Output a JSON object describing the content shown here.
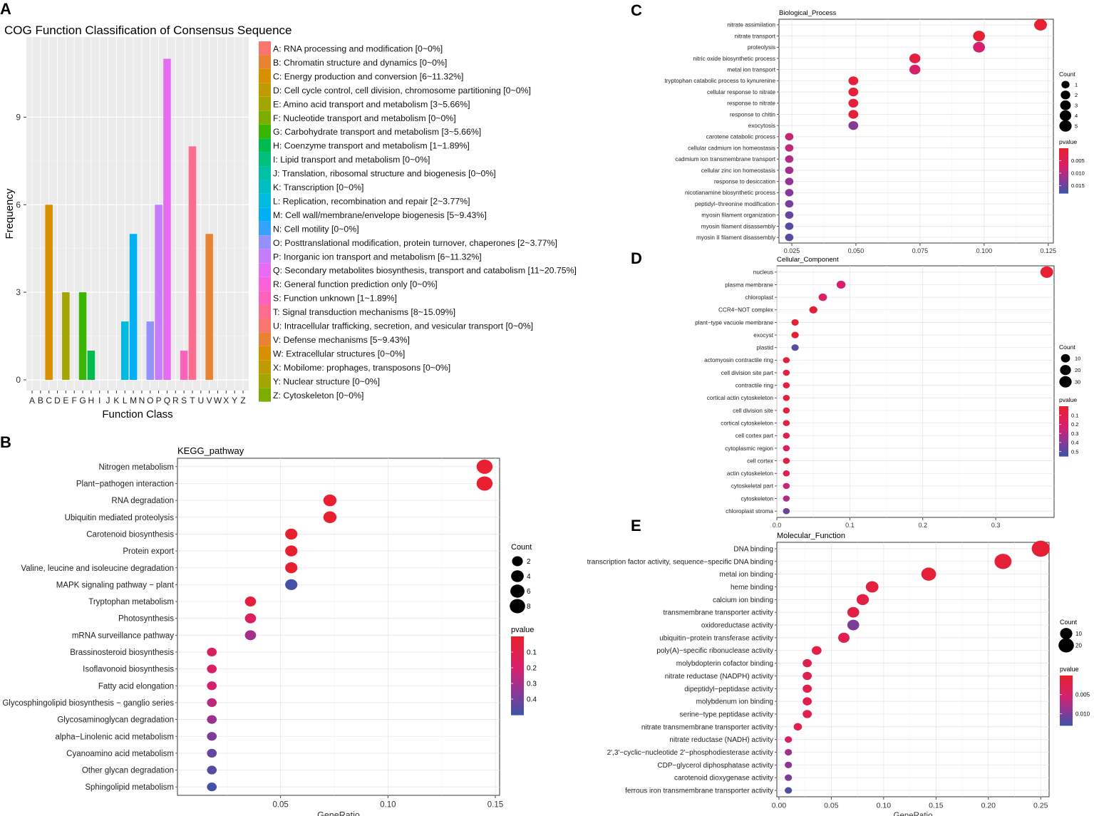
{
  "chart_data": [
    {
      "id": "A",
      "panel_letter": "A",
      "type": "bar",
      "title": "COG Function Classification of Consensus Sequence",
      "xlabel": "Function Class",
      "ylabel": "Frequency",
      "ylim": [
        0,
        11.5
      ],
      "yticks": [
        0,
        3,
        6,
        9
      ],
      "categories": [
        "A",
        "B",
        "C",
        "D",
        "E",
        "F",
        "G",
        "H",
        "I",
        "J",
        "K",
        "L",
        "M",
        "N",
        "O",
        "P",
        "Q",
        "R",
        "S",
        "T",
        "U",
        "V",
        "W",
        "X",
        "Y",
        "Z"
      ],
      "values": [
        0,
        0,
        6,
        0,
        3,
        0,
        3,
        1,
        0,
        0,
        0,
        2,
        5,
        0,
        2,
        6,
        11,
        0,
        1,
        8,
        0,
        5,
        0,
        0,
        0,
        0
      ],
      "colors": [
        "#F8766D",
        "#EA8331",
        "#D89000",
        "#C09B00",
        "#A3A500",
        "#7CAE00",
        "#39B600",
        "#00BB4E",
        "#00BF7D",
        "#00C1A3",
        "#00BFC4",
        "#00BAE0",
        "#00B0F6",
        "#35A2FF",
        "#9590FF",
        "#C77CFF",
        "#E76BF3",
        "#FA62DB",
        "#FF62BC",
        "#FF6C90",
        "#F8766D",
        "#EA8331",
        "#D89000",
        "#C09B00",
        "#A3A500",
        "#7CAE00"
      ],
      "legend": [
        "A: RNA processing and modification [0~0%]",
        "B: Chromatin structure and dynamics [0~0%]",
        "C: Energy production and conversion [6~11.32%]",
        "D: Cell cycle control, cell division, chromosome partitioning [0~0%]",
        "E: Amino acid transport and metabolism [3~5.66%]",
        "F: Nucleotide transport and metabolism [0~0%]",
        "G: Carbohydrate transport and metabolism [3~5.66%]",
        "H: Coenzyme transport and metabolism [1~1.89%]",
        "I: Lipid transport and metabolism [0~0%]",
        "J: Translation, ribosomal structure and biogenesis [0~0%]",
        "K: Transcription [0~0%]",
        "L: Replication, recombination and repair [2~3.77%]",
        "M: Cell wall/membrane/envelope biogenesis [5~9.43%]",
        "N: Cell motility [0~0%]",
        "O: Posttranslational modification, protein turnover, chaperones [2~3.77%]",
        "P: Inorganic ion transport and metabolism [6~11.32%]",
        "Q: Secondary metabolites biosynthesis, transport and catabolism [11~20.75%]",
        "R: General function prediction only [0~0%]",
        "S: Function unknown [1~1.89%]",
        "T: Signal transduction mechanisms [8~15.09%]",
        "U: Intracellular trafficking, secretion, and vesicular transport [0~0%]",
        "V: Defense mechanisms [5~9.43%]",
        "W: Extracellular structures [0~0%]",
        "X: Mobilome: prophages, transposons [0~0%]",
        "Y: Nuclear structure [0~0%]",
        "Z: Cytoskeleton [0~0%]"
      ]
    },
    {
      "id": "B",
      "panel_letter": "B",
      "type": "scatter",
      "title": "KEGG_pathway",
      "xlabel": "GeneRatio",
      "xlim": [
        0.002,
        0.152
      ],
      "xticks": [
        0.05,
        0.1,
        0.15
      ],
      "xtick_labels": [
        "0.05",
        "0.10",
        "0.15"
      ],
      "terms": [
        "Nitrogen metabolism",
        "Plant−pathogen interaction",
        "RNA degradation",
        "Ubiquitin mediated proteolysis",
        "Carotenoid biosynthesis",
        "Protein export",
        "Valine, leucine and isoleucine degradation",
        "MAPK signaling pathway − plant",
        "Tryptophan metabolism",
        "Photosynthesis",
        "mRNA surveillance pathway",
        "Brassinosteroid biosynthesis",
        "Isoflavonoid biosynthesis",
        "Fatty acid elongation",
        "Glycosphingolipid biosynthesis − ganglio series",
        "Glycosaminoglycan degradation",
        "alpha−Linolenic acid metabolism",
        "Cyanoamino acid metabolism",
        "Other glycan degradation",
        "Sphingolipid metabolism"
      ],
      "x": [
        0.145,
        0.145,
        0.073,
        0.073,
        0.055,
        0.055,
        0.055,
        0.055,
        0.036,
        0.036,
        0.036,
        0.018,
        0.018,
        0.018,
        0.018,
        0.018,
        0.018,
        0.018,
        0.018,
        0.018
      ],
      "count": [
        8,
        8,
        4,
        4,
        3,
        3,
        3,
        3,
        2,
        2,
        2,
        1,
        1,
        1,
        1,
        1,
        1,
        1,
        1,
        1
      ],
      "pvalue": [
        0.002,
        0.002,
        0.004,
        0.004,
        0.006,
        0.006,
        0.006,
        0.48,
        0.05,
        0.15,
        0.3,
        0.15,
        0.17,
        0.2,
        0.25,
        0.32,
        0.38,
        0.42,
        0.45,
        0.48
      ],
      "size_legend_title": "Count",
      "size_legend": [
        2,
        4,
        6,
        8
      ],
      "color_legend_title": "pvalue",
      "color_range": [
        0,
        0.5
      ],
      "color_ticks": [
        0.1,
        0.2,
        0.3,
        0.4
      ],
      "color_tick_labels": [
        "0.1",
        "0.2",
        "0.3",
        "0.4"
      ]
    },
    {
      "id": "C",
      "panel_letter": "C",
      "type": "scatter",
      "title": "Biological_Process",
      "xlabel": "",
      "xlim": [
        0.02,
        0.127
      ],
      "xticks": [
        0.025,
        0.05,
        0.075,
        0.1,
        0.125
      ],
      "xtick_labels": [
        "0.025",
        "0.050",
        "0.075",
        "0.100",
        "0.125"
      ],
      "terms": [
        "nitrate assimilation",
        "nitrate transport",
        "proteolysis",
        "nitric oxide biosynthetic process",
        "metal ion transport",
        "tryptophan catabolic process to kynurenine",
        "cellular response to nitrate",
        "response to nitrate",
        "response to chitin",
        "exocytosis",
        "carotene catabolic process",
        "cellular cadmium ion homeostasis",
        "cadmium ion transmembrane transport",
        "cellular zinc ion homeostasis",
        "response to desiccation",
        "nicotianamine biosynthetic process",
        "peptidyl−threonine modification",
        "myosin filament organization",
        "myosin filament disassembly",
        "myosin II filament disassembly"
      ],
      "x": [
        0.122,
        0.098,
        0.098,
        0.073,
        0.073,
        0.049,
        0.049,
        0.049,
        0.049,
        0.049,
        0.024,
        0.024,
        0.024,
        0.024,
        0.024,
        0.024,
        0.024,
        0.024,
        0.024,
        0.024
      ],
      "count": [
        5,
        4,
        4,
        3,
        3,
        2,
        2,
        2,
        2,
        2,
        1,
        1,
        1,
        1,
        1,
        1,
        1,
        1,
        1,
        1
      ],
      "pvalue": [
        0.0005,
        0.001,
        0.007,
        0.002,
        0.007,
        0.0015,
        0.0015,
        0.0015,
        0.0015,
        0.013,
        0.008,
        0.009,
        0.01,
        0.011,
        0.012,
        0.013,
        0.014,
        0.015,
        0.016,
        0.016
      ],
      "size_legend_title": "Count",
      "size_legend": [
        1,
        2,
        3,
        4,
        5
      ],
      "color_legend_title": "pvalue",
      "color_range": [
        0,
        0.018
      ],
      "color_ticks": [
        0.005,
        0.01,
        0.015
      ],
      "color_tick_labels": [
        "0.005",
        "0.010",
        "0.015"
      ]
    },
    {
      "id": "D",
      "panel_letter": "D",
      "type": "scatter",
      "title": "Cellular_Component",
      "xlabel": "",
      "xlim": [
        0,
        0.38
      ],
      "xticks": [
        0,
        0.1,
        0.2,
        0.3
      ],
      "xtick_labels": [
        "0.0",
        "0.1",
        "0.2",
        "0.3"
      ],
      "terms": [
        "nucleus",
        "plasma membrane",
        "chloroplast",
        "CCR4−NOT complex",
        "plant−type vacuole membrane",
        "exocyst",
        "plastid",
        "actomyosin contractile ring",
        "cell division site part",
        "contractile ring",
        "cortical actin cytoskeleton",
        "cell division site",
        "cortical cytoskeleton",
        "cell cortex part",
        "cytoplasmic region",
        "cell cortex",
        "actin cytoskeleton",
        "cytoskeletal part",
        "cytoskeleton",
        "chloroplast stroma"
      ],
      "x": [
        0.37,
        0.088,
        0.063,
        0.05,
        0.025,
        0.025,
        0.025,
        0.013,
        0.013,
        0.013,
        0.013,
        0.013,
        0.013,
        0.013,
        0.013,
        0.013,
        0.013,
        0.013,
        0.013,
        0.013
      ],
      "count": [
        30,
        8,
        6,
        5,
        3,
        3,
        3,
        2,
        2,
        2,
        2,
        2,
        2,
        2,
        2,
        2,
        2,
        2,
        2,
        2
      ],
      "pvalue": [
        0.01,
        0.22,
        0.18,
        0.02,
        0.02,
        0.02,
        0.5,
        0.04,
        0.06,
        0.06,
        0.06,
        0.06,
        0.08,
        0.1,
        0.15,
        0.1,
        0.12,
        0.25,
        0.32,
        0.45
      ],
      "size_legend_title": "Count",
      "size_legend": [
        10,
        20,
        30
      ],
      "color_legend_title": "pvalue",
      "color_range": [
        0,
        0.55
      ],
      "color_ticks": [
        0.1,
        0.2,
        0.3,
        0.4,
        0.5
      ],
      "color_tick_labels": [
        "0.1",
        "0.2",
        "0.3",
        "0.4",
        "0.5"
      ]
    },
    {
      "id": "E",
      "panel_letter": "E",
      "type": "scatter",
      "title": "Molecular_Function",
      "xlabel": "GeneRatio",
      "xlim": [
        -0.002,
        0.258
      ],
      "xticks": [
        0,
        0.05,
        0.1,
        0.15,
        0.2,
        0.25
      ],
      "xtick_labels": [
        "0.00",
        "0.05",
        "0.10",
        "0.15",
        "0.20",
        "0.25"
      ],
      "terms": [
        "DNA binding",
        "transcription factor activity, sequence−specific DNA binding",
        "metal ion binding",
        "heme binding",
        "calcium ion binding",
        "transmembrane transporter activity",
        "oxidoreductase activity",
        "ubiquitin−protein transferase activity",
        "poly(A)−specific ribonuclease activity",
        "molybdopterin cofactor binding",
        "nitrate reductase (NADPH) activity",
        "dipeptidyl−peptidase activity",
        "molybdenum ion binding",
        "serine−type peptidase activity",
        "nitrate transmembrane transporter activity",
        "nitrate reductase (NADH) activity",
        "2',3'−cyclic−nucleotide 2'−phosphodiesterase activity",
        "CDP−glycerol diphosphatase activity",
        "carotenoid dioxygenase activity",
        "ferrous iron transmembrane transporter activity"
      ],
      "x": [
        0.25,
        0.214,
        0.143,
        0.089,
        0.08,
        0.071,
        0.071,
        0.062,
        0.036,
        0.027,
        0.027,
        0.027,
        0.027,
        0.027,
        0.018,
        0.009,
        0.009,
        0.009,
        0.009,
        0.009
      ],
      "count": [
        28,
        24,
        16,
        10,
        9,
        8,
        8,
        7,
        4,
        3,
        3,
        3,
        3,
        3,
        2,
        1,
        1,
        1,
        1,
        1
      ],
      "pvalue": [
        0.0005,
        0.0008,
        0.001,
        0.0015,
        0.002,
        0.002,
        0.01,
        0.003,
        0.002,
        0.0025,
        0.0025,
        0.0025,
        0.0025,
        0.0025,
        0.003,
        0.004,
        0.008,
        0.009,
        0.01,
        0.012
      ],
      "size_legend_title": "Count",
      "size_legend": [
        10,
        20
      ],
      "color_legend_title": "pvalue",
      "color_range": [
        0,
        0.013
      ],
      "color_ticks": [
        0.005,
        0.01
      ],
      "color_tick_labels": [
        "0.005",
        "0.010"
      ]
    }
  ]
}
